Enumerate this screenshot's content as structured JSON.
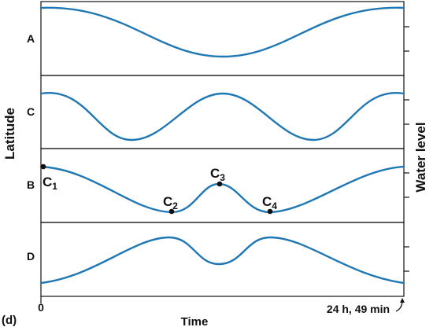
{
  "figure": {
    "panel_letter": "(d)",
    "y_axis_left": "Latitude",
    "y_axis_right": "Water level",
    "x_axis": "Time",
    "x_start": "0",
    "x_end": "24 h, 49 min",
    "curve_color": "#1f77b4",
    "panels": [
      {
        "label": "A",
        "shape": "single-trough"
      },
      {
        "label": "C",
        "shape": "double-trough"
      },
      {
        "label": "B",
        "shape": "trough-peak-trough"
      },
      {
        "label": "D",
        "shape": "peak-dip-peak"
      }
    ],
    "points": [
      {
        "main": "C",
        "sub": "1"
      },
      {
        "main": "C",
        "sub": "2"
      },
      {
        "main": "C",
        "sub": "3"
      },
      {
        "main": "C",
        "sub": "4"
      }
    ]
  }
}
